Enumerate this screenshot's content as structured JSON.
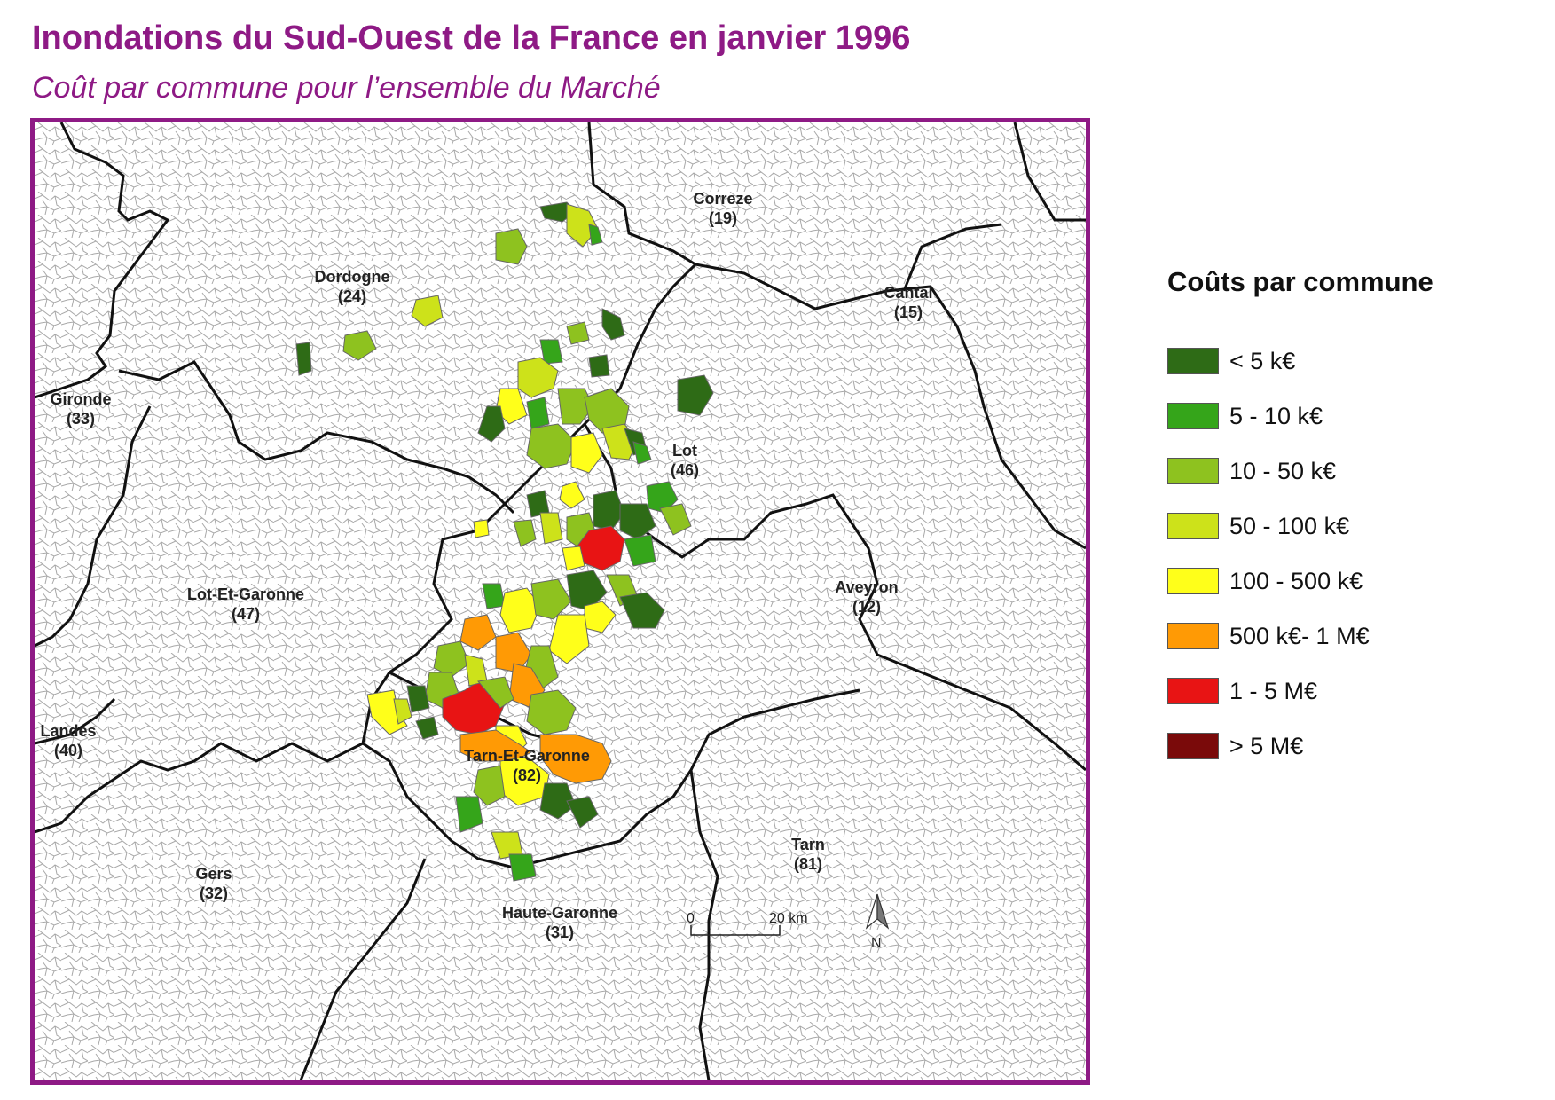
{
  "title": "Inondations du Sud-Ouest de la France en janvier 1996",
  "subtitle": "Coût par commune pour l’ensemble du Marché",
  "colors": {
    "accent": "#8e1a85",
    "classes": [
      "#2e6b16",
      "#35a51a",
      "#8ec21f",
      "#cde21a",
      "#ffff1a",
      "#ff9a05",
      "#e81414",
      "#7a0a0a"
    ]
  },
  "legend": {
    "title": "Coûts par commune",
    "items": [
      {
        "label": "< 5 k€",
        "color": "#2e6b16"
      },
      {
        "label": "5 - 10 k€",
        "color": "#35a51a"
      },
      {
        "label": "10 - 50 k€",
        "color": "#8ec21f"
      },
      {
        "label": "50 - 100 k€",
        "color": "#cde21a"
      },
      {
        "label": "100 - 500 k€",
        "color": "#ffff1a"
      },
      {
        "label": "500 k€- 1 M€",
        "color": "#ff9a05"
      },
      {
        "label": "1 - 5 M€",
        "color": "#e81414"
      },
      {
        "label": "> 5 M€",
        "color": "#7a0a0a"
      }
    ]
  },
  "departments": [
    {
      "name": "Correze",
      "code": "(19)"
    },
    {
      "name": "Dordogne",
      "code": "(24)"
    },
    {
      "name": "Cantal",
      "code": "(15)"
    },
    {
      "name": "Gironde",
      "code": "(33)"
    },
    {
      "name": "Lot",
      "code": "(46)"
    },
    {
      "name": "Lot-Et-Garonne",
      "code": "(47)"
    },
    {
      "name": "Aveyron",
      "code": "(12)"
    },
    {
      "name": "Landes",
      "code": "(40)"
    },
    {
      "name": "Tarn-Et-Garonne",
      "code": "(82)"
    },
    {
      "name": "Tarn",
      "code": "(81)"
    },
    {
      "name": "Gers",
      "code": "(32)"
    },
    {
      "name": "Haute-Garonne",
      "code": "(31)"
    }
  ],
  "scale": {
    "start": "0",
    "end": "20 km"
  },
  "north": "N"
}
